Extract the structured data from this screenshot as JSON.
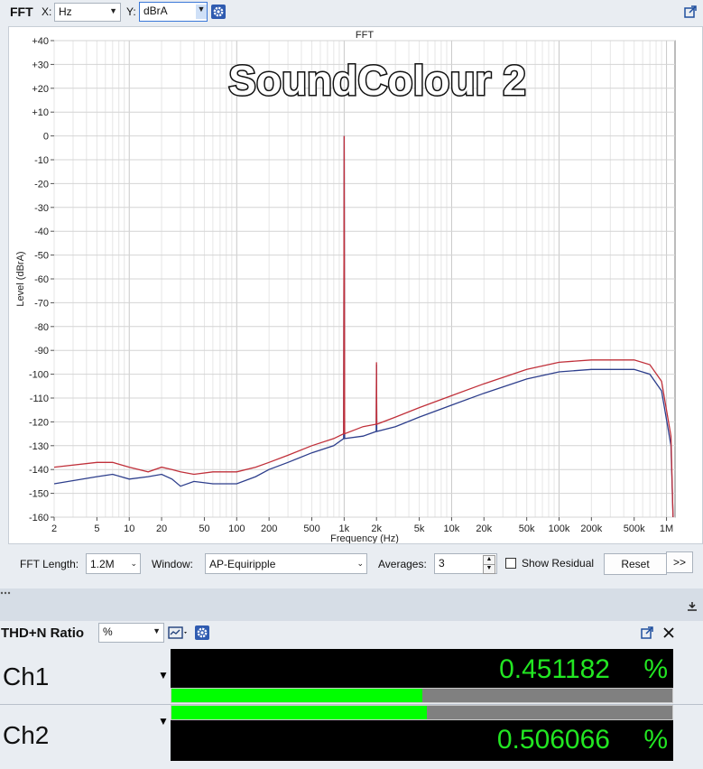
{
  "fft": {
    "title": "FFT",
    "x_label": "X:",
    "x_unit": "Hz",
    "y_label": "Y:",
    "y_unit": "dBrA",
    "controls": {
      "fft_length_label": "FFT Length:",
      "fft_length_value": "1.2M",
      "window_label": "Window:",
      "window_value": "AP-Equiripple",
      "averages_label": "Averages:",
      "averages_value": "3",
      "show_residual_label": "Show Residual",
      "reset_label": "Reset",
      "more_label": ">>"
    }
  },
  "watermark": "SoundColour 2",
  "chart_data": {
    "type": "line",
    "title": "FFT",
    "xlabel": "Frequency (Hz)",
    "ylabel": "Level (dBrA)",
    "x_scale": "log",
    "xlim": [
      2,
      1200000
    ],
    "ylim": [
      -160,
      40
    ],
    "grid": true,
    "x_ticks": [
      {
        "v": 2,
        "l": "2"
      },
      {
        "v": 5,
        "l": "5"
      },
      {
        "v": 10,
        "l": "10"
      },
      {
        "v": 20,
        "l": "20"
      },
      {
        "v": 50,
        "l": "50"
      },
      {
        "v": 100,
        "l": "100"
      },
      {
        "v": 200,
        "l": "200"
      },
      {
        "v": 500,
        "l": "500"
      },
      {
        "v": 1000,
        "l": "1k"
      },
      {
        "v": 2000,
        "l": "2k"
      },
      {
        "v": 5000,
        "l": "5k"
      },
      {
        "v": 10000,
        "l": "10k"
      },
      {
        "v": 20000,
        "l": "20k"
      },
      {
        "v": 50000,
        "l": "50k"
      },
      {
        "v": 100000,
        "l": "100k"
      },
      {
        "v": 200000,
        "l": "200k"
      },
      {
        "v": 500000,
        "l": "500k"
      },
      {
        "v": 1000000,
        "l": "1M"
      }
    ],
    "y_ticks": [
      {
        "v": 40,
        "l": "+40"
      },
      {
        "v": 30,
        "l": "+30"
      },
      {
        "v": 20,
        "l": "+20"
      },
      {
        "v": 10,
        "l": "+10"
      },
      {
        "v": 0,
        "l": "0"
      },
      {
        "v": -10,
        "l": "-10"
      },
      {
        "v": -20,
        "l": "-20"
      },
      {
        "v": -30,
        "l": "-30"
      },
      {
        "v": -40,
        "l": "-40"
      },
      {
        "v": -50,
        "l": "-50"
      },
      {
        "v": -60,
        "l": "-60"
      },
      {
        "v": -70,
        "l": "-70"
      },
      {
        "v": -80,
        "l": "-80"
      },
      {
        "v": -90,
        "l": "-90"
      },
      {
        "v": -100,
        "l": "-100"
      },
      {
        "v": -110,
        "l": "-110"
      },
      {
        "v": -120,
        "l": "-120"
      },
      {
        "v": -130,
        "l": "-130"
      },
      {
        "v": -140,
        "l": "-140"
      },
      {
        "v": -150,
        "l": "-150"
      },
      {
        "v": -160,
        "l": "-160"
      }
    ],
    "series": [
      {
        "color": "#2d3e8c",
        "points": [
          [
            2,
            -146
          ],
          [
            5,
            -143
          ],
          [
            7,
            -142
          ],
          [
            10,
            -144
          ],
          [
            15,
            -143
          ],
          [
            20,
            -142
          ],
          [
            25,
            -144
          ],
          [
            30,
            -147
          ],
          [
            40,
            -145
          ],
          [
            60,
            -146
          ],
          [
            100,
            -146
          ],
          [
            150,
            -143
          ],
          [
            200,
            -140
          ],
          [
            300,
            -137
          ],
          [
            500,
            -133
          ],
          [
            800,
            -130
          ],
          [
            990,
            -127
          ],
          [
            1000,
            0
          ],
          [
            1010,
            -127
          ],
          [
            1500,
            -126
          ],
          [
            1990,
            -124
          ],
          [
            2000,
            -96
          ],
          [
            2010,
            -124
          ],
          [
            3000,
            -122
          ],
          [
            5000,
            -118
          ],
          [
            10000,
            -113
          ],
          [
            20000,
            -108
          ],
          [
            50000,
            -102
          ],
          [
            100000,
            -99
          ],
          [
            200000,
            -98
          ],
          [
            500000,
            -98
          ],
          [
            700000,
            -100
          ],
          [
            900000,
            -107
          ],
          [
            1100000,
            -130
          ],
          [
            1150000,
            -160
          ]
        ]
      },
      {
        "color": "#c0303a",
        "points": [
          [
            2,
            -139
          ],
          [
            5,
            -137
          ],
          [
            7,
            -137
          ],
          [
            10,
            -139
          ],
          [
            15,
            -141
          ],
          [
            20,
            -139
          ],
          [
            25,
            -140
          ],
          [
            30,
            -141
          ],
          [
            40,
            -142
          ],
          [
            60,
            -141
          ],
          [
            100,
            -141
          ],
          [
            150,
            -139
          ],
          [
            200,
            -137
          ],
          [
            300,
            -134
          ],
          [
            500,
            -130
          ],
          [
            800,
            -127
          ],
          [
            990,
            -125
          ],
          [
            1000,
            0
          ],
          [
            1010,
            -125
          ],
          [
            1500,
            -122
          ],
          [
            1990,
            -121
          ],
          [
            2000,
            -95
          ],
          [
            2010,
            -121
          ],
          [
            3000,
            -118
          ],
          [
            5000,
            -114
          ],
          [
            10000,
            -109
          ],
          [
            20000,
            -104
          ],
          [
            50000,
            -98
          ],
          [
            100000,
            -95
          ],
          [
            200000,
            -94
          ],
          [
            500000,
            -94
          ],
          [
            700000,
            -96
          ],
          [
            900000,
            -103
          ],
          [
            1100000,
            -126
          ],
          [
            1150000,
            -160
          ]
        ]
      }
    ]
  },
  "thd": {
    "title": "THD+N Ratio",
    "unit": "%",
    "channels": [
      {
        "label": "Ch1",
        "value": "0.451182",
        "unit": "%",
        "level": 0.5
      },
      {
        "label": "Ch2",
        "value": "0.506066",
        "unit": "%",
        "level": 0.51
      }
    ]
  }
}
